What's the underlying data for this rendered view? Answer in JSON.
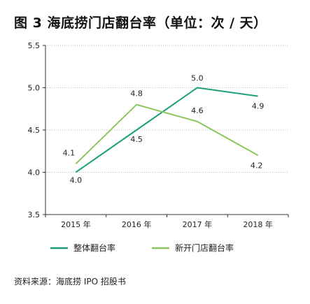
{
  "chart_data": {
    "type": "line",
    "title": "图 3  海底捞门店翻台率（单位：次 / 天）",
    "categories": [
      "2015 年",
      "2016 年",
      "2017 年",
      "2018 年"
    ],
    "series": [
      {
        "name": "整体翻台率",
        "values": [
          4.0,
          4.5,
          5.0,
          4.9
        ],
        "color": "#1f9e7e"
      },
      {
        "name": "新开门店翻台率",
        "values": [
          4.1,
          4.8,
          4.6,
          4.2
        ],
        "color": "#8cc65e"
      }
    ],
    "ylim": [
      3.5,
      5.5
    ],
    "yticks": [
      "3.5",
      "4.0",
      "4.5",
      "5.0",
      "5.5"
    ],
    "grid": "horizontal dotted",
    "legend": "bottom",
    "data_labels": [
      {
        "text": "4.0",
        "series": 0,
        "point": 0
      },
      {
        "text": "4.1",
        "series": 1,
        "point": 0
      },
      {
        "text": "4.8",
        "series": 1,
        "point": 1
      },
      {
        "text": "4.5",
        "series": 0,
        "point": 1
      },
      {
        "text": "5.0",
        "series": 0,
        "point": 2
      },
      {
        "text": "4.6",
        "series": 1,
        "point": 2
      },
      {
        "text": "4.9",
        "series": 0,
        "point": 3
      },
      {
        "text": "4.2",
        "series": 1,
        "point": 3
      }
    ]
  },
  "source": "资料来源：海底捞 IPO 招股书"
}
